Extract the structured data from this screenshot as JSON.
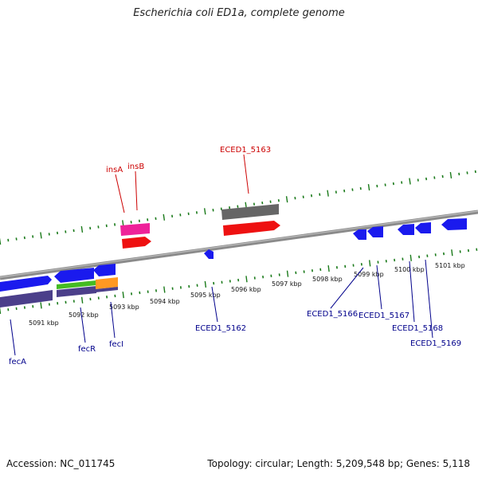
{
  "title": "Escherichia coli ED1a, complete genome",
  "footer": {
    "accession": "Accession: NC_011745",
    "info": "Topology: circular; Length: 5,209,548 bp; Genes: 5,118"
  },
  "colors": {
    "tick": "#1a7a1a",
    "backbone": "#888888",
    "upper_label": "#cc0000",
    "lower_label": "#00008b",
    "blue": "#1a1aee",
    "navy": "#4b3f8a",
    "red": "#ee1111",
    "pink": "#ee2299",
    "gray": "#666666",
    "green": "#44bb22",
    "orange": "#ff9922"
  },
  "kbp_ticks": [
    "5091 kbp",
    "5092 kbp",
    "5093 kbp",
    "5094 kbp",
    "5095 kbp",
    "5096 kbp",
    "5097 kbp",
    "5098 kbp",
    "5099 kbp",
    "5100 kbp",
    "5101 kbp"
  ],
  "upper_labels": [
    "insA",
    "insB",
    "ECED1_5163"
  ],
  "lower_labels": [
    "fecA",
    "fecR",
    "fecI",
    "ECED1_5162",
    "ECED1_5166",
    "ECED1_5167",
    "ECED1_5168",
    "ECED1_5169"
  ]
}
